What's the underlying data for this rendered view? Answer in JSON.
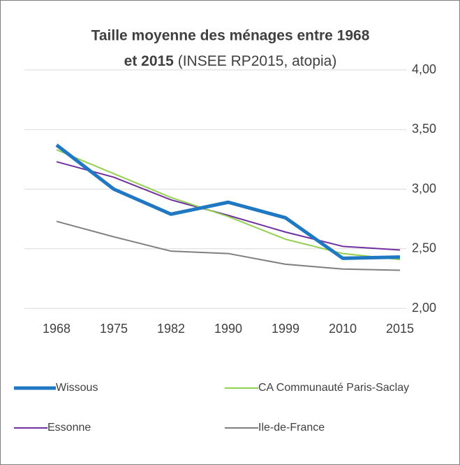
{
  "chart_data": {
    "type": "line",
    "title": [
      "Taille moyenne des ménages entre 1968",
      "et 2015"
    ],
    "subtitle": "(INSEE RP2015, atopia)",
    "categories": [
      "1968",
      "1975",
      "1982",
      "1990",
      "1999",
      "2010",
      "2015"
    ],
    "series": [
      {
        "name": "Wissous",
        "color": "#1f78c1",
        "values": [
          3.37,
          3.0,
          2.79,
          2.89,
          2.76,
          2.42,
          2.43
        ]
      },
      {
        "name": "CA Communauté Paris-Saclay",
        "color": "#92d050",
        "values": [
          3.33,
          3.13,
          2.93,
          2.77,
          2.58,
          2.46,
          2.41
        ]
      },
      {
        "name": "Essonne",
        "color": "#7030a0",
        "values": [
          3.23,
          3.1,
          2.91,
          2.78,
          2.64,
          2.52,
          2.49
        ]
      },
      {
        "name": "Ile-de-France",
        "color": "#7f7f7f",
        "values": [
          2.73,
          2.6,
          2.48,
          2.46,
          2.37,
          2.33,
          2.32
        ]
      }
    ],
    "ylim": [
      2,
      4
    ],
    "yticks": [
      {
        "value": 2,
        "label": "2,00"
      },
      {
        "value": 2.5,
        "label": "2,50"
      },
      {
        "value": 3,
        "label": "3,00"
      },
      {
        "value": 3.5,
        "label": "3,50"
      },
      {
        "value": 4,
        "label": "4,00"
      }
    ],
    "grid": true
  }
}
